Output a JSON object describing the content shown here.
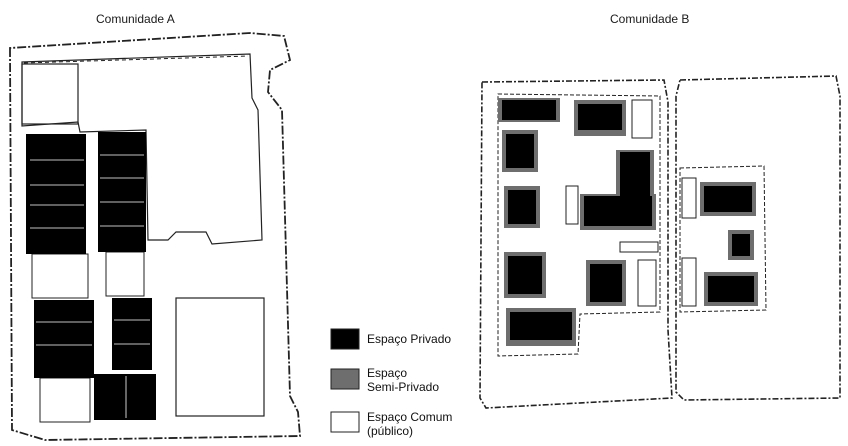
{
  "titles": {
    "community_a": "Comunidade A",
    "community_b": "Comunidade B"
  },
  "legend": {
    "private": {
      "label": "Espaço Privado",
      "color": "#000000"
    },
    "semi_private": {
      "label_line1": "Espaço",
      "label_line2": "Semi-Privado",
      "color": "#6e6e6e"
    },
    "common": {
      "label_line1": "Espaço Comum",
      "label_line2": "(público)",
      "color": "#ffffff"
    }
  }
}
